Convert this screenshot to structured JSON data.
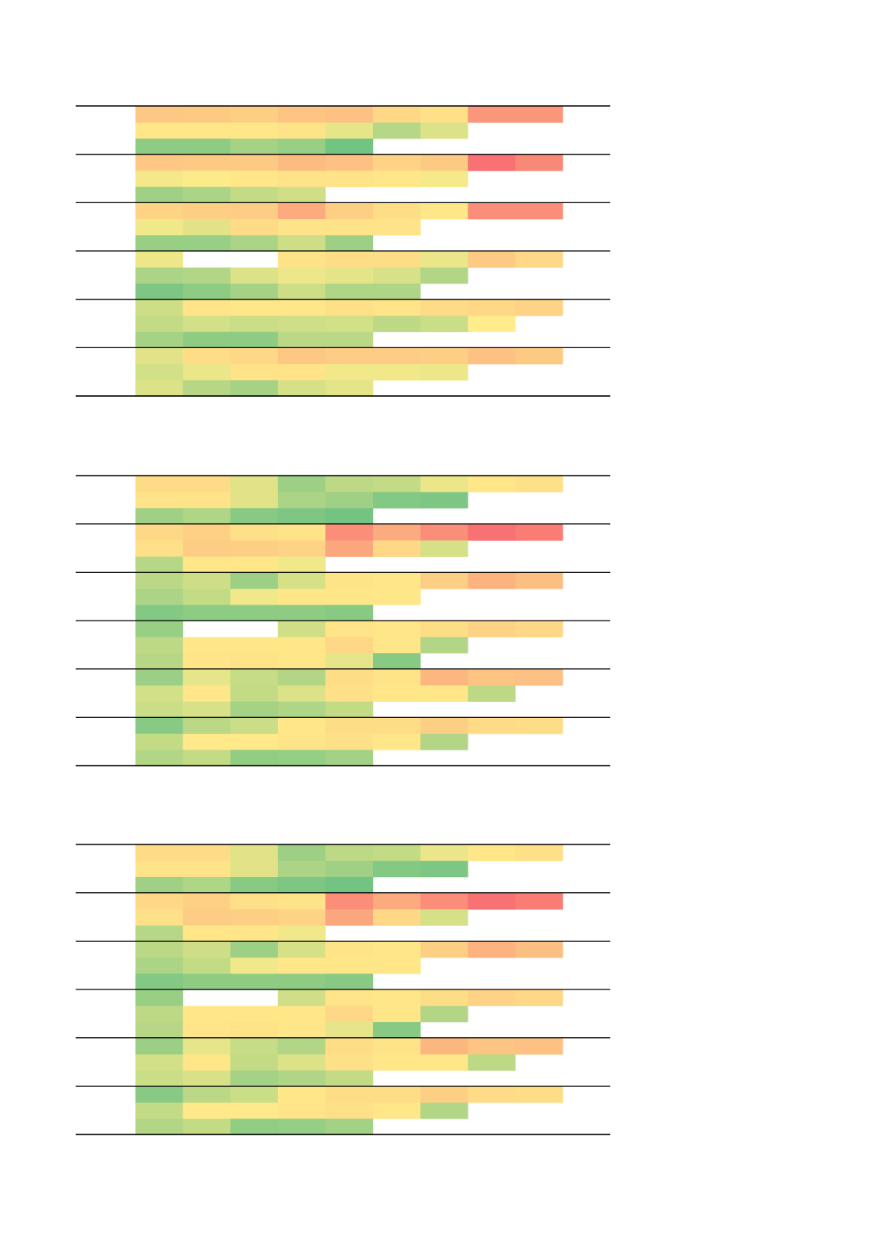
{
  "chart_data": {
    "type": "heatmap",
    "title": "",
    "colorscale": {
      "low": "#63BE7B",
      "mid": "#FFEB84",
      "high": "#F8696B",
      "range": [
        0,
        1
      ]
    },
    "panels": [
      {
        "groups": [
          [
            [
              0.65,
              0.64,
              0.62,
              0.66,
              0.67,
              0.58,
              0.55,
              0.85,
              0.85
            ],
            [
              0.52,
              0.52,
              0.52,
              0.54,
              0.42,
              0.25,
              0.38
            ],
            [
              0.12,
              0.12,
              0.2,
              0.15,
              0.03
            ]
          ],
          [
            [
              0.65,
              0.64,
              0.64,
              0.7,
              0.67,
              0.6,
              0.64,
              1.0,
              0.9
            ],
            [
              0.46,
              0.49,
              0.52,
              0.54,
              0.54,
              0.52,
              0.47
            ],
            [
              0.18,
              0.22,
              0.3,
              0.34
            ]
          ],
          [
            [
              0.6,
              0.62,
              0.63,
              0.76,
              0.62,
              0.56,
              0.52,
              0.88,
              0.88
            ],
            [
              0.45,
              0.4,
              0.57,
              0.54,
              0.54,
              0.54
            ],
            [
              0.15,
              0.15,
              0.22,
              0.33,
              0.17
            ]
          ],
          [
            [
              0.44,
              null,
              null,
              0.54,
              0.56,
              0.56,
              0.43,
              0.64,
              0.58
            ],
            [
              0.22,
              0.24,
              0.38,
              0.44,
              0.41,
              0.37,
              0.24
            ],
            [
              0.06,
              0.12,
              0.2,
              0.33,
              0.23,
              0.23
            ]
          ],
          [
            [
              0.33,
              0.53,
              0.52,
              0.52,
              0.55,
              0.53,
              0.57,
              0.58,
              0.6
            ],
            [
              0.3,
              0.35,
              0.32,
              0.34,
              0.35,
              0.28,
              0.32,
              0.5
            ],
            [
              0.2,
              0.12,
              0.12,
              0.27,
              0.27
            ]
          ],
          [
            [
              0.4,
              0.56,
              0.58,
              0.65,
              0.63,
              0.63,
              0.62,
              0.67,
              0.64
            ],
            [
              0.35,
              0.43,
              0.54,
              0.54,
              0.45,
              0.45,
              0.44
            ],
            [
              0.38,
              0.26,
              0.2,
              0.36,
              0.41
            ]
          ]
        ]
      },
      {
        "groups": [
          [
            [
              0.57,
              0.57,
              0.4,
              0.17,
              0.28,
              0.3,
              0.43,
              0.52,
              0.55
            ],
            [
              0.54,
              0.54,
              0.4,
              0.22,
              0.18,
              0.08,
              0.06
            ],
            [
              0.18,
              0.23,
              0.1,
              0.06,
              0.03
            ]
          ],
          [
            [
              0.58,
              0.61,
              0.55,
              0.54,
              0.88,
              0.76,
              0.88,
              1.0,
              0.95
            ],
            [
              0.55,
              0.63,
              0.62,
              0.6,
              0.78,
              0.58,
              0.36
            ],
            [
              0.25,
              0.52,
              0.52,
              0.45
            ]
          ],
          [
            [
              0.27,
              0.33,
              0.17,
              0.36,
              0.54,
              0.52,
              0.62,
              0.73,
              0.68
            ],
            [
              0.22,
              0.3,
              0.45,
              0.52,
              0.52,
              0.52
            ],
            [
              0.08,
              0.12,
              0.12,
              0.12,
              0.1
            ]
          ],
          [
            [
              0.15,
              null,
              null,
              0.34,
              0.53,
              0.52,
              0.56,
              0.6,
              0.58
            ],
            [
              0.28,
              0.52,
              0.52,
              0.52,
              0.58,
              0.52,
              0.24
            ],
            [
              0.26,
              0.53,
              0.54,
              0.52,
              0.42,
              0.1
            ]
          ],
          [
            [
              0.16,
              0.42,
              0.31,
              0.24,
              0.56,
              0.54,
              0.72,
              0.66,
              0.67
            ],
            [
              0.35,
              0.52,
              0.3,
              0.38,
              0.55,
              0.52,
              0.52,
              0.28
            ],
            [
              0.32,
              0.37,
              0.2,
              0.23,
              0.3
            ]
          ],
          [
            [
              0.1,
              0.27,
              0.32,
              0.52,
              0.56,
              0.56,
              0.62,
              0.57,
              0.56
            ],
            [
              0.3,
              0.51,
              0.51,
              0.53,
              0.55,
              0.52,
              0.24
            ],
            [
              0.24,
              0.3,
              0.13,
              0.14,
              0.19
            ]
          ]
        ]
      },
      {
        "groups": [
          [
            [
              0.57,
              0.57,
              0.4,
              0.17,
              0.28,
              0.3,
              0.43,
              0.52,
              0.55
            ],
            [
              0.54,
              0.54,
              0.4,
              0.22,
              0.18,
              0.08,
              0.06
            ],
            [
              0.18,
              0.23,
              0.1,
              0.06,
              0.03
            ]
          ],
          [
            [
              0.58,
              0.61,
              0.55,
              0.54,
              0.88,
              0.76,
              0.88,
              1.0,
              0.95
            ],
            [
              0.55,
              0.63,
              0.62,
              0.6,
              0.78,
              0.58,
              0.36
            ],
            [
              0.25,
              0.52,
              0.52,
              0.45
            ]
          ],
          [
            [
              0.27,
              0.33,
              0.17,
              0.36,
              0.54,
              0.52,
              0.62,
              0.73,
              0.68
            ],
            [
              0.22,
              0.3,
              0.45,
              0.52,
              0.52,
              0.52
            ],
            [
              0.08,
              0.12,
              0.12,
              0.12,
              0.1
            ]
          ],
          [
            [
              0.15,
              null,
              null,
              0.34,
              0.53,
              0.52,
              0.56,
              0.6,
              0.58
            ],
            [
              0.28,
              0.52,
              0.52,
              0.52,
              0.58,
              0.52,
              0.24
            ],
            [
              0.26,
              0.53,
              0.54,
              0.52,
              0.42,
              0.1
            ]
          ],
          [
            [
              0.16,
              0.42,
              0.31,
              0.24,
              0.56,
              0.54,
              0.72,
              0.66,
              0.67
            ],
            [
              0.35,
              0.52,
              0.3,
              0.38,
              0.55,
              0.52,
              0.52,
              0.28
            ],
            [
              0.32,
              0.37,
              0.2,
              0.23,
              0.3
            ]
          ],
          [
            [
              0.1,
              0.27,
              0.32,
              0.52,
              0.56,
              0.56,
              0.62,
              0.57,
              0.56
            ],
            [
              0.3,
              0.51,
              0.51,
              0.53,
              0.55,
              0.52,
              0.24
            ],
            [
              0.24,
              0.3,
              0.13,
              0.14,
              0.19
            ]
          ]
        ]
      }
    ]
  }
}
